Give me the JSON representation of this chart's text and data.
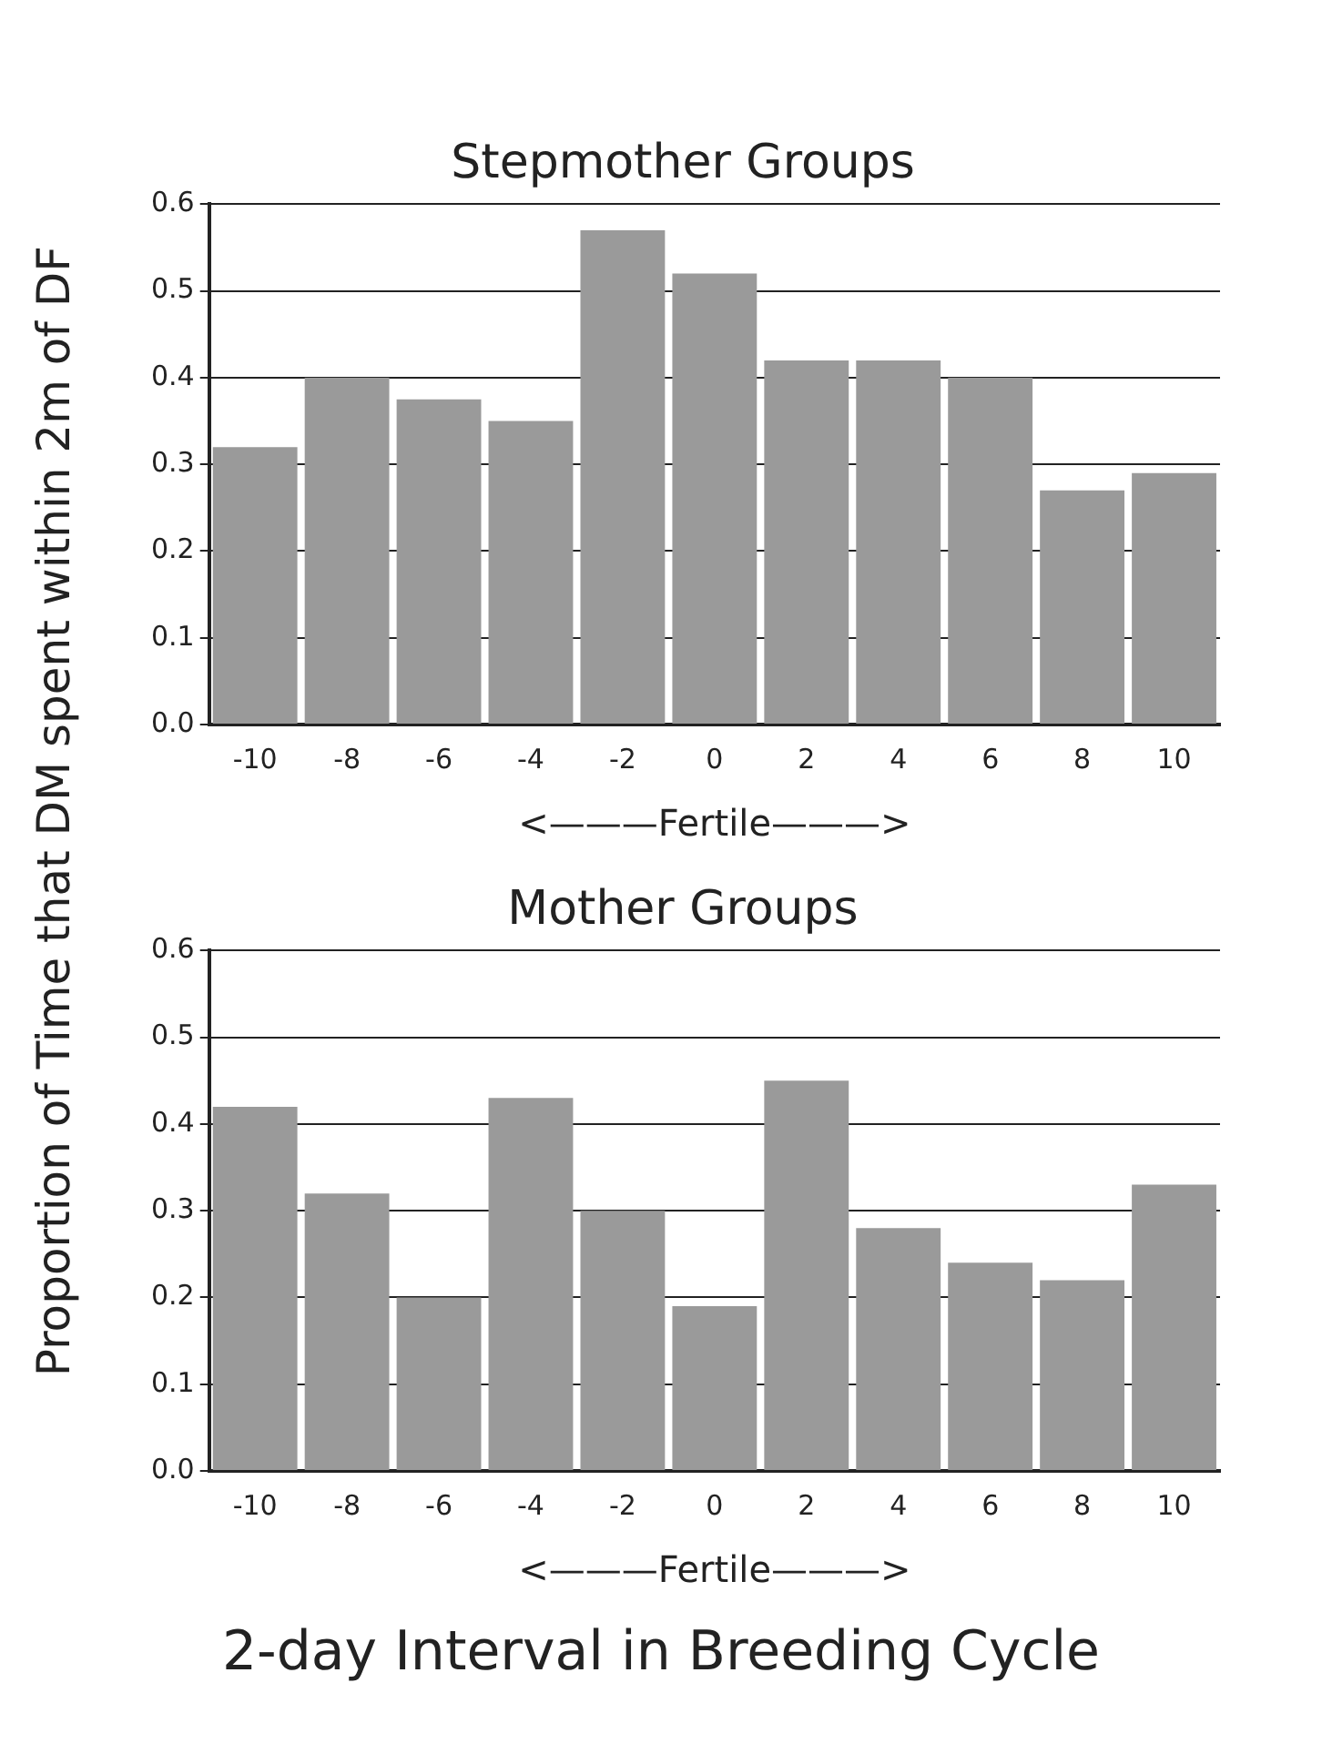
{
  "chart_data": [
    {
      "type": "bar",
      "title": "Stepmother Groups",
      "xlabel": "<———Fertile———>",
      "ylabel": "Proportion of Time that DM spent within 2m of DF",
      "categories": [
        "-10",
        "-8",
        "-6",
        "-4",
        "-2",
        "0",
        "2",
        "4",
        "6",
        "8",
        "10"
      ],
      "values": [
        0.32,
        0.4,
        0.375,
        0.35,
        0.57,
        0.52,
        0.42,
        0.42,
        0.4,
        0.27,
        0.29
      ],
      "color": "#9a9a9a",
      "ylim": [
        0,
        0.6
      ],
      "yticks": [
        {
          "value": 0,
          "label": "0.0"
        },
        {
          "value": 0.1,
          "label": "0.1"
        },
        {
          "value": 0.2,
          "label": "0.2"
        },
        {
          "value": 0.3,
          "label": "0.3"
        },
        {
          "value": 0.4,
          "label": "0.4"
        },
        {
          "value": 0.5,
          "label": "0.5"
        },
        {
          "value": 0.6,
          "label": "0.6"
        }
      ],
      "grid": "y"
    },
    {
      "type": "bar",
      "title": "Mother Groups",
      "xlabel": "<———Fertile———>",
      "categories": [
        "-10",
        "-8",
        "-6",
        "-4",
        "-2",
        "0",
        "2",
        "4",
        "6",
        "8",
        "10"
      ],
      "values": [
        0.42,
        0.32,
        0.2,
        0.43,
        0.3,
        0.19,
        0.45,
        0.28,
        0.24,
        0.22,
        0.33
      ],
      "color": "#9a9a9a",
      "ylim": [
        0,
        0.6
      ],
      "yticks": [
        {
          "value": 0,
          "label": "0.0"
        },
        {
          "value": 0.1,
          "label": "0.1"
        },
        {
          "value": 0.2,
          "label": "0.2"
        },
        {
          "value": 0.3,
          "label": "0.3"
        },
        {
          "value": 0.4,
          "label": "0.4"
        },
        {
          "value": 0.5,
          "label": "0.5"
        },
        {
          "value": 0.6,
          "label": "0.6"
        }
      ],
      "grid": "y",
      "annotations": [
        "2-day Interval in Breeding Cycle"
      ]
    }
  ]
}
